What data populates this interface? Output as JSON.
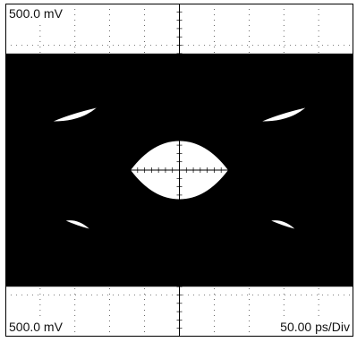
{
  "readouts": {
    "top_left": "500.0 mV",
    "bottom_left": "500.0 mV",
    "bottom_right": "50.00 ps/Div"
  },
  "colors": {
    "background": "#ffffff",
    "trace": "#000000",
    "grid": "#000000",
    "eye_opening": "#ffffff"
  },
  "chart_data": {
    "type": "eye-diagram",
    "title": "",
    "xlabel": "",
    "ylabel": "",
    "divisions": {
      "horizontal": 10,
      "vertical": 8
    },
    "x_scale": "50.00 ps/Div",
    "y_scale": "500.0 mV",
    "grid": true,
    "eye": {
      "levels_div": {
        "logic_high": 2.8,
        "logic_low": -2.8,
        "center": 0.0
      },
      "opening_center_div": [
        0.0,
        0.0
      ],
      "opening_width_div": 2.8,
      "opening_height_div": 0.7,
      "upper_side_openings_center_div": [
        [
          -3.0,
          1.3
        ],
        [
          3.0,
          1.3
        ]
      ],
      "lower_side_openings_center_div": [
        [
          -2.9,
          -1.3
        ],
        [
          3.0,
          -1.3
        ]
      ]
    }
  }
}
